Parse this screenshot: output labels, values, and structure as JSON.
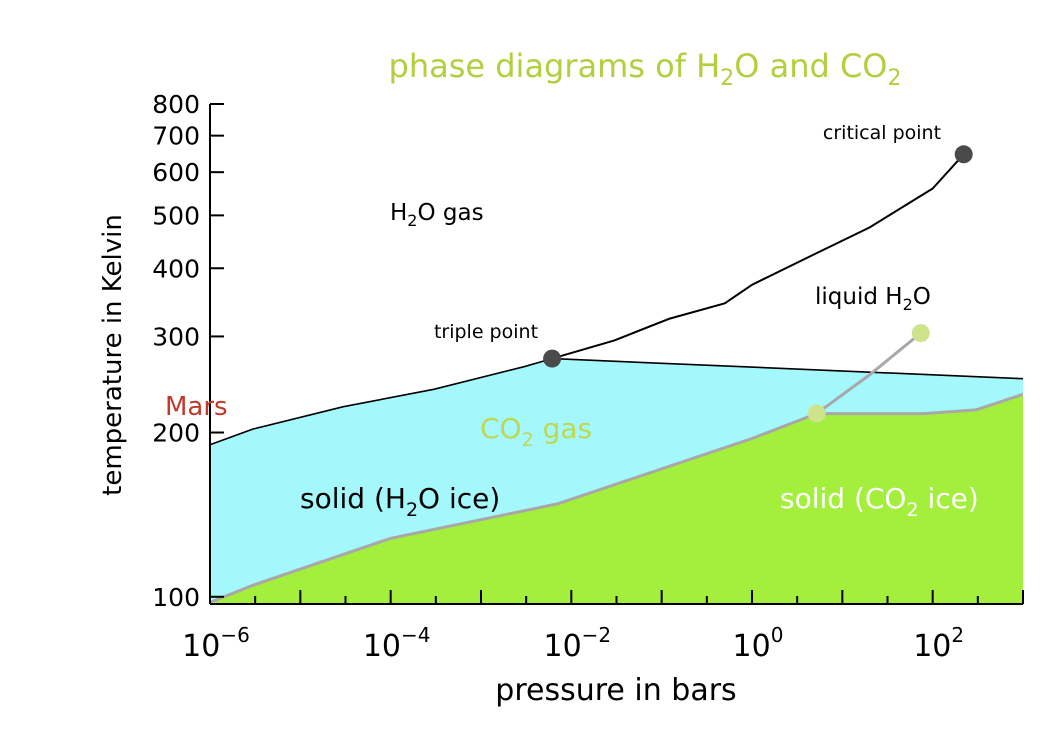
{
  "chart_data": {
    "type": "line",
    "title": {
      "pre": "phase diagrams of H",
      "sub1": "2",
      "mid": "O and CO",
      "sub2": "2"
    },
    "xlabel": "pressure in bars",
    "ylabel": "temperature in Kelvin",
    "x_scale": "log",
    "y_scale": "log",
    "xlim": [
      1e-06,
      1000
    ],
    "ylim": [
      97,
      800
    ],
    "x_ticks": [
      {
        "value": 1e-06,
        "base": "10",
        "exp": "−6"
      },
      {
        "value": 0.0001,
        "base": "10",
        "exp": "−4"
      },
      {
        "value": 0.01,
        "base": "10",
        "exp": "−2"
      },
      {
        "value": 1,
        "base": "10",
        "exp": "0"
      },
      {
        "value": 100,
        "base": "10",
        "exp": "2"
      }
    ],
    "y_ticks": [
      {
        "value": 100,
        "label": "100"
      },
      {
        "value": 200,
        "label": "200"
      },
      {
        "value": 300,
        "label": "300"
      },
      {
        "value": 400,
        "label": "400"
      },
      {
        "value": 500,
        "label": "500"
      },
      {
        "value": 600,
        "label": "600"
      },
      {
        "value": 700,
        "label": "700"
      },
      {
        "value": 800,
        "label": "800"
      }
    ],
    "colors": {
      "h2o_solid": "#a4f8fc",
      "co2_solid": "#a4ee3c",
      "h2o_lines": "#000000",
      "co2_lines": "#a8a8a8",
      "h2o_points": "#4a4a4a",
      "co2_points": "#cde38c",
      "title": "#b2cf3e",
      "co2_gas_label": "#bed854",
      "mars": "#c0392b",
      "co2_ice_label": "#ffffff"
    },
    "h2o_boundary": {
      "sublimation": [
        [
          1e-06,
          190
        ],
        [
          3e-06,
          203
        ],
        [
          3e-05,
          223
        ],
        [
          0.0003,
          240
        ],
        [
          0.003,
          264
        ],
        [
          0.00612,
          273.16
        ]
      ],
      "vaporization": [
        [
          0.00612,
          273.16
        ],
        [
          0.03,
          295
        ],
        [
          0.12,
          323
        ],
        [
          0.5,
          345
        ],
        [
          1,
          373
        ],
        [
          5,
          425
        ],
        [
          20,
          475
        ],
        [
          100,
          560
        ],
        [
          220.6,
          647
        ]
      ],
      "melting": [
        [
          0.00612,
          273.16
        ],
        [
          1000,
          251
        ]
      ]
    },
    "co2_boundary": {
      "sublimation": [
        [
          9e-07,
          97
        ],
        [
          3e-06,
          105
        ],
        [
          0.0001,
          128
        ],
        [
          0.007,
          148
        ],
        [
          1,
          195
        ],
        [
          5.2,
          216.6
        ]
      ],
      "melting": [
        [
          5.2,
          216.6
        ],
        [
          80,
          216.6
        ],
        [
          300,
          220
        ],
        [
          1000,
          235
        ]
      ],
      "vaporization": [
        [
          5.2,
          216.6
        ],
        [
          20,
          255
        ],
        [
          73.8,
          304.2
        ]
      ]
    },
    "points": [
      {
        "name": "h2o-triple",
        "label": "triple point",
        "x": 0.00612,
        "y": 273.16
      },
      {
        "name": "h2o-critical",
        "label": "critical point",
        "x": 220.6,
        "y": 647
      },
      {
        "name": "co2-triple",
        "label": "",
        "x": 5.2,
        "y": 216.6
      },
      {
        "name": "co2-critical",
        "label": "",
        "x": 73.8,
        "y": 304.2
      }
    ],
    "region_labels": {
      "h2o_gas": {
        "pre": "H",
        "sub": "2",
        "post": "O gas"
      },
      "liquid_h2o": {
        "pre": "liquid H",
        "sub": "2",
        "post": "O"
      },
      "co2_gas": {
        "pre": "CO",
        "sub": "2",
        "post": " gas"
      },
      "solid_h2o": {
        "pre": "solid (H",
        "sub": "2",
        "post": "O ice)"
      },
      "solid_co2": {
        "pre": "solid (CO",
        "sub": "2",
        "post": " ice)"
      },
      "mars": "Mars"
    }
  }
}
